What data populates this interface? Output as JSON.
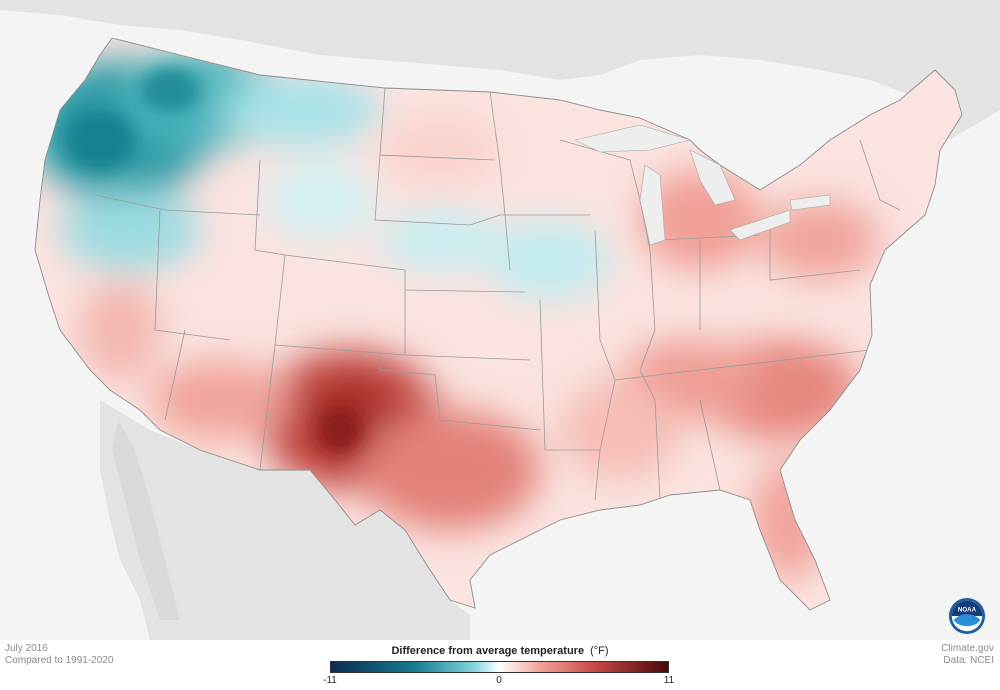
{
  "map": {
    "period": "July 2016",
    "baseline": "Compared to 1991-2020",
    "credit_site": "Climate.gov",
    "credit_data": "Data: NCEI",
    "logo_text": "NOAA"
  },
  "legend": {
    "title": "Difference from average temperature",
    "unit": "(°F)",
    "ticks": [
      "-11",
      "0",
      "11"
    ],
    "colors": {
      "cold_extreme": "#0d2b52",
      "cold": "#167d8f",
      "cool": "#7fd3dc",
      "neutral": "#ffffff",
      "warm": "#f3a29a",
      "hot": "#c94a45",
      "hot_extreme": "#4a0808"
    }
  },
  "regions": {
    "cool_anomaly": [
      "Pacific Northwest",
      "Northern Rockies",
      "Upper Midwest"
    ],
    "warm_anomaly": [
      "Texas",
      "Southwest",
      "Southeast",
      "Northeast",
      "Great Lakes"
    ]
  }
}
